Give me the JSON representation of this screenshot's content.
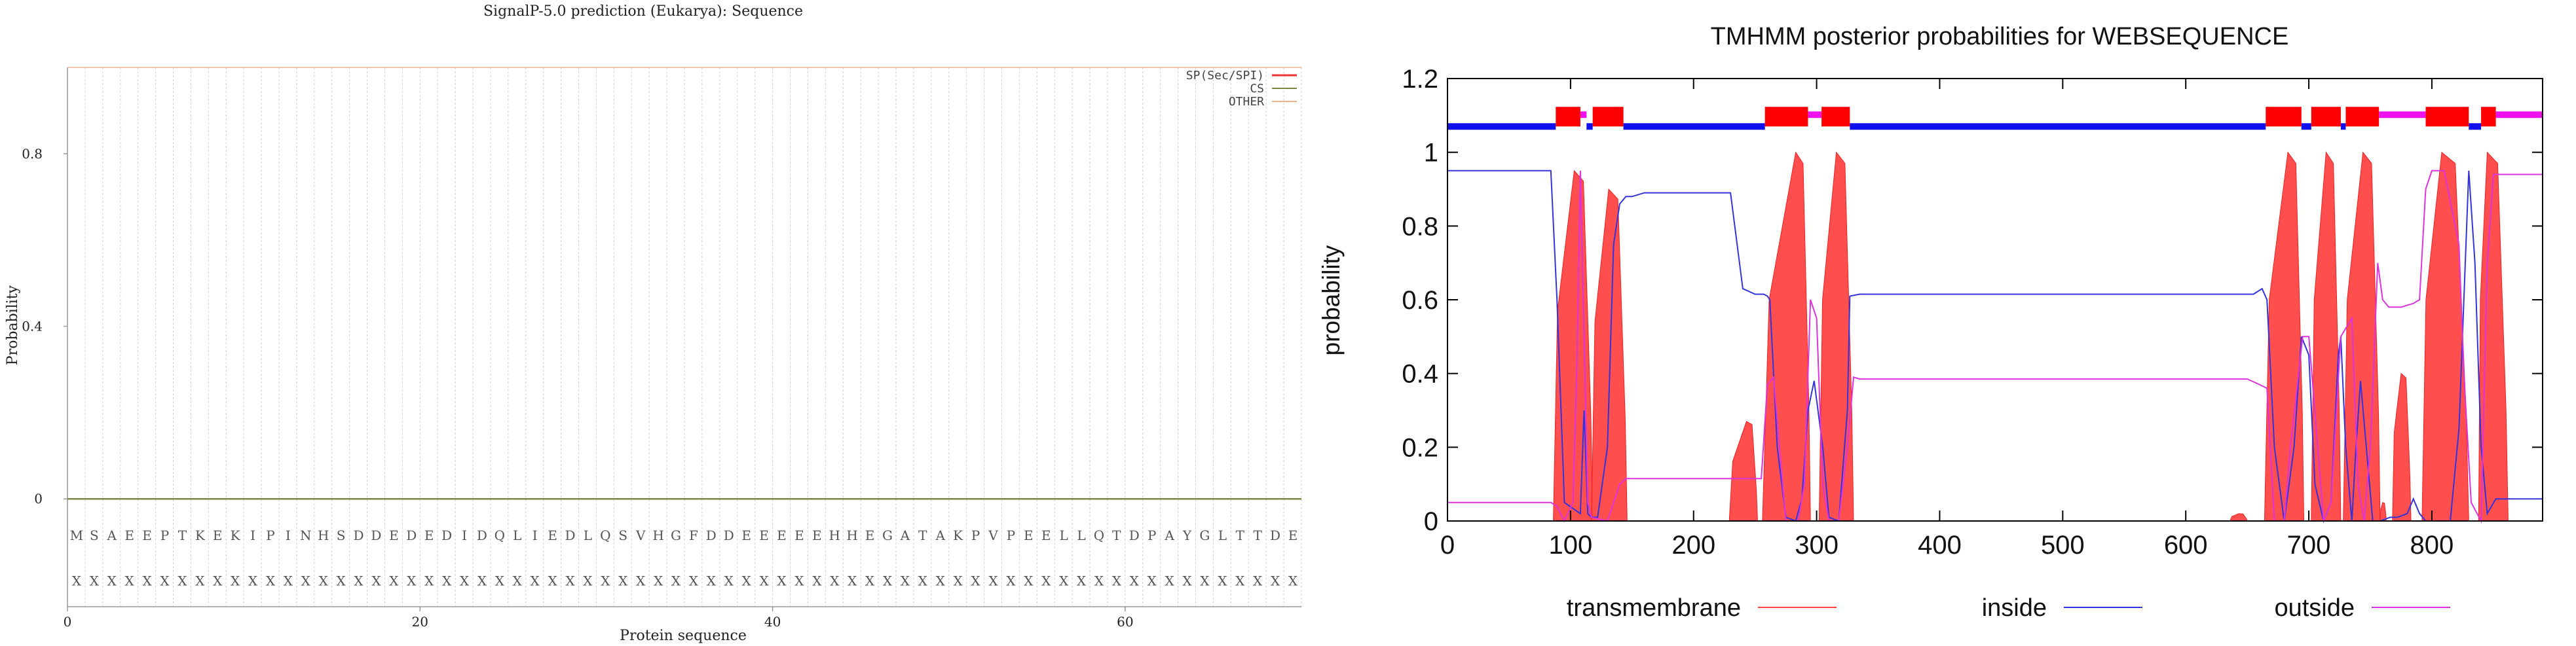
{
  "chart_data": [
    {
      "type": "line",
      "title": "SignalP-5.0 prediction (Eukarya):  Sequence",
      "xlabel": "Protein sequence",
      "ylabel": "Probability",
      "xlim": [
        0,
        70
      ],
      "ylim": [
        -0.25,
        1.0
      ],
      "x_ticks": [
        0,
        20,
        40,
        60
      ],
      "y_ticks": [
        0,
        0.4,
        0.8
      ],
      "y_tick_labels": [
        "0",
        "0.4",
        "0.8"
      ],
      "grid": "vertical dashed lines at each residue",
      "legend_position": "top-right",
      "sequence": [
        "M",
        "S",
        "A",
        "E",
        "E",
        "P",
        "T",
        "K",
        "E",
        "K",
        "I",
        "P",
        "I",
        "N",
        "H",
        "S",
        "D",
        "D",
        "E",
        "D",
        "E",
        "D",
        "I",
        "D",
        "Q",
        "L",
        "I",
        "E",
        "D",
        "L",
        "Q",
        "S",
        "V",
        "H",
        "G",
        "F",
        "D",
        "D",
        "E",
        "E",
        "E",
        "E",
        "E",
        "H",
        "H",
        "E",
        "G",
        "A",
        "T",
        "A",
        "K",
        "P",
        "V",
        "P",
        "E",
        "E",
        "L",
        "L",
        "Q",
        "T",
        "D",
        "P",
        "A",
        "Y",
        "G",
        "L",
        "T",
        "T",
        "D",
        "E"
      ],
      "annotation_row": [
        "X",
        "X",
        "X",
        "X",
        "X",
        "X",
        "X",
        "X",
        "X",
        "X",
        "X",
        "X",
        "X",
        "X",
        "X",
        "X",
        "X",
        "X",
        "X",
        "X",
        "X",
        "X",
        "X",
        "X",
        "X",
        "X",
        "X",
        "X",
        "X",
        "X",
        "X",
        "X",
        "X",
        "X",
        "X",
        "X",
        "X",
        "X",
        "X",
        "X",
        "X",
        "X",
        "X",
        "X",
        "X",
        "X",
        "X",
        "X",
        "X",
        "X",
        "X",
        "X",
        "X",
        "X",
        "X",
        "X",
        "X",
        "X",
        "X",
        "X",
        "X",
        "X",
        "X",
        "X",
        "X",
        "X",
        "X",
        "X",
        "X",
        "X"
      ],
      "series": [
        {
          "name": "SP(Sec/SPI)",
          "color": "#ee3333",
          "x": [
            0,
            70
          ],
          "y": [
            0,
            0
          ]
        },
        {
          "name": "CS",
          "color": "#7a8a44",
          "x": [
            0,
            70
          ],
          "y": [
            0,
            0
          ]
        },
        {
          "name": "OTHER",
          "color": "#f0b090",
          "x": [
            0,
            70
          ],
          "y": [
            1,
            1
          ]
        }
      ]
    },
    {
      "type": "line",
      "title": "TMHMM posterior probabilities for WEBSEQUENCE",
      "xlabel": "",
      "ylabel": "probability",
      "xlim": [
        0,
        890
      ],
      "ylim": [
        0,
        1.2
      ],
      "x_ticks": [
        0,
        100,
        200,
        300,
        400,
        500,
        600,
        700,
        800
      ],
      "y_ticks": [
        0,
        0.2,
        0.4,
        0.6,
        0.8,
        1,
        1.2
      ],
      "y_tick_labels": [
        "0",
        "0.2",
        "0.4",
        "0.6",
        "0.8",
        "1",
        "1.2"
      ],
      "legend_position": "bottom",
      "topology_track": {
        "y": 1.07,
        "inside": [
          [
            0,
            88
          ],
          [
            113,
            118
          ],
          [
            143,
            258
          ],
          [
            327,
            665
          ],
          [
            694,
            702
          ],
          [
            726,
            730
          ],
          [
            830,
            840
          ]
        ],
        "outside": [
          [
            108,
            113
          ],
          [
            293,
            304
          ],
          [
            757,
            795
          ],
          [
            852,
            890
          ]
        ],
        "transmembrane": [
          [
            88,
            108
          ],
          [
            118,
            143
          ],
          [
            258,
            293
          ],
          [
            304,
            327
          ],
          [
            665,
            694
          ],
          [
            702,
            726
          ],
          [
            730,
            757
          ],
          [
            795,
            830
          ],
          [
            840,
            852
          ]
        ]
      },
      "series": [
        {
          "name": "transmembrane",
          "color": "#ff4444",
          "peaks": [
            [
              86,
              103,
              0.95,
              118
            ],
            [
              117,
              131,
              0.9,
              146
            ],
            [
              229,
              243,
              0.27,
              252
            ],
            [
              256,
              283,
              1.0,
              295
            ],
            [
              302,
              316,
              1.0,
              330
            ],
            [
              636,
              643,
              0.02,
              650
            ],
            [
              664,
              683,
              1.0,
              696
            ],
            [
              702,
              714,
              1.0,
              726
            ],
            [
              728,
              744,
              1.0,
              758
            ],
            [
              758,
              760,
              0.05,
              763
            ],
            [
              768,
              775,
              0.4,
              783
            ],
            [
              792,
              808,
              1.0,
              830
            ],
            [
              838,
              845,
              1.0,
              862
            ]
          ]
        },
        {
          "name": "inside",
          "color": "#3333dd",
          "x": [
            0,
            84,
            89,
            95,
            108,
            111,
            114,
            117,
            122,
            130,
            135,
            140,
            145,
            150,
            160,
            200,
            220,
            230,
            240,
            250,
            257,
            260,
            262,
            268,
            275,
            283,
            288,
            293,
            298,
            305,
            310,
            318,
            325,
            327,
            335,
            640,
            650,
            655,
            662,
            666,
            672,
            680,
            688,
            694,
            700,
            705,
            712,
            718,
            724,
            726,
            730,
            735,
            738,
            742,
            752,
            758,
            766,
            772,
            780,
            785,
            790,
            795,
            805,
            815,
            822,
            826,
            830,
            835,
            840,
            845,
            852,
            870,
            890
          ],
          "y": [
            0.95,
            0.95,
            0.6,
            0.05,
            0.02,
            0.3,
            0.02,
            0.01,
            0.01,
            0.2,
            0.75,
            0.86,
            0.88,
            0.88,
            0.89,
            0.89,
            0.89,
            0.89,
            0.63,
            0.615,
            0.615,
            0.61,
            0.6,
            0.2,
            0.01,
            0.0,
            0.06,
            0.3,
            0.38,
            0.2,
            0.01,
            0.0,
            0.3,
            0.61,
            0.615,
            0.615,
            0.615,
            0.615,
            0.63,
            0.6,
            0.2,
            0.0,
            0.2,
            0.5,
            0.45,
            0.1,
            0.0,
            0.05,
            0.45,
            0.5,
            0.2,
            0.0,
            0.18,
            0.38,
            0.0,
            0.0,
            0.01,
            0.01,
            0.02,
            0.06,
            0.02,
            0.0,
            0.0,
            0.0,
            0.25,
            0.6,
            0.95,
            0.7,
            0.2,
            0.02,
            0.06,
            0.06,
            0.06
          ]
        },
        {
          "name": "outside",
          "color": "#dd33dd",
          "x": [
            0,
            84,
            89,
            95,
            102,
            105,
            108,
            111,
            114,
            117,
            130,
            140,
            145,
            200,
            240,
            250,
            255,
            260,
            265,
            275,
            285,
            290,
            295,
            300,
            305,
            310,
            318,
            325,
            330,
            335,
            640,
            650,
            660,
            666,
            672,
            680,
            685,
            695,
            700,
            712,
            718,
            726,
            735,
            740,
            745,
            750,
            756,
            760,
            765,
            775,
            785,
            790,
            795,
            800,
            810,
            822,
            826,
            832,
            840,
            845,
            850,
            870,
            890
          ],
          "y": [
            0.05,
            0.05,
            0.04,
            0.0,
            0.05,
            0.4,
            0.95,
            0.5,
            0.05,
            0.01,
            0.0,
            0.1,
            0.115,
            0.115,
            0.115,
            0.115,
            0.115,
            0.37,
            0.39,
            0.0,
            0.0,
            0.1,
            0.6,
            0.55,
            0.1,
            0.0,
            0.0,
            0.2,
            0.39,
            0.385,
            0.385,
            0.385,
            0.37,
            0.36,
            0.0,
            0.0,
            0.2,
            0.5,
            0.5,
            0.0,
            0.05,
            0.5,
            0.55,
            0.1,
            0.0,
            0.2,
            0.7,
            0.6,
            0.58,
            0.58,
            0.59,
            0.6,
            0.9,
            0.95,
            0.95,
            0.75,
            0.4,
            0.05,
            0.0,
            0.7,
            0.94,
            0.94,
            0.94
          ]
        }
      ]
    }
  ]
}
